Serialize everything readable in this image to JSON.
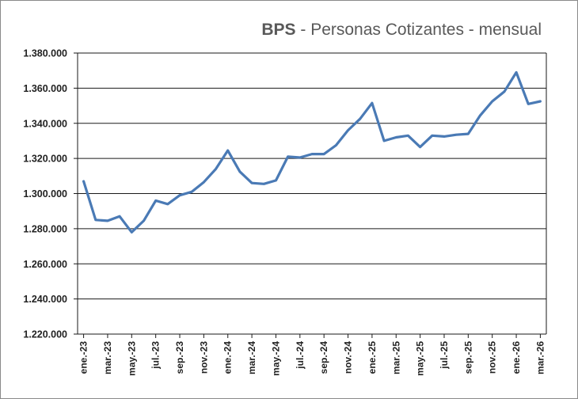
{
  "chart_data": {
    "type": "line",
    "title_bold": "BPS",
    "title_rest": " - Personas Cotizantes - mensual",
    "xlabel": "",
    "ylabel": "",
    "ylim": [
      1220000,
      1380000
    ],
    "y_ticks": [
      "1.220.000",
      "1.240.000",
      "1.260.000",
      "1.280.000",
      "1.300.000",
      "1.320.000",
      "1.340.000",
      "1.360.000",
      "1.380.000"
    ],
    "x_tick_labels": [
      "ene.-23",
      "mar.-23",
      "may.-23",
      "jul.-23",
      "sep.-23",
      "nov.-23",
      "ene.-24",
      "mar.-24",
      "may.-24",
      "jul.-24",
      "sep.-24",
      "nov.-24",
      "ene.-25",
      "mar.-25",
      "may.-25",
      "jul.-25",
      "sep.-25",
      "nov.-25",
      "ene.-26",
      "mar.-26"
    ],
    "line_color": "#4a7ab5",
    "grid": true,
    "series": [
      {
        "x": [
          "ene.-23",
          "feb.-23",
          "mar.-23",
          "abr.-23",
          "may.-23",
          "jun.-23",
          "jul.-23",
          "ago.-23",
          "sep.-23",
          "oct.-23",
          "nov.-23",
          "dic.-23",
          "ene.-24",
          "feb.-24",
          "mar.-24",
          "abr.-24",
          "may.-24",
          "jun.-24",
          "jul.-24",
          "ago.-24",
          "sep.-24",
          "oct.-24",
          "nov.-24",
          "dic.-24",
          "ene.-25",
          "feb.-25",
          "mar.-25",
          "abr.-25",
          "may.-25",
          "jun.-25",
          "jul.-25",
          "ago.-25",
          "sep.-25",
          "oct.-25",
          "nov.-25",
          "dic.-25",
          "ene.-26",
          "feb.-26",
          "mar.-26"
        ],
        "values": [
          1307000,
          1285000,
          1284500,
          1287000,
          1278000,
          1284500,
          1296000,
          1294000,
          1299000,
          1301000,
          1306500,
          1314000,
          1324500,
          1312500,
          1306000,
          1305500,
          1307500,
          1321000,
          1320500,
          1322500,
          1322500,
          1327500,
          1336000,
          1342500,
          1351500,
          1330000,
          1332000,
          1333000,
          1326500,
          1333000,
          1332500,
          1333500,
          1334000,
          1344500,
          1352500,
          1358000,
          1369000,
          1351000,
          1352500
        ]
      }
    ]
  }
}
